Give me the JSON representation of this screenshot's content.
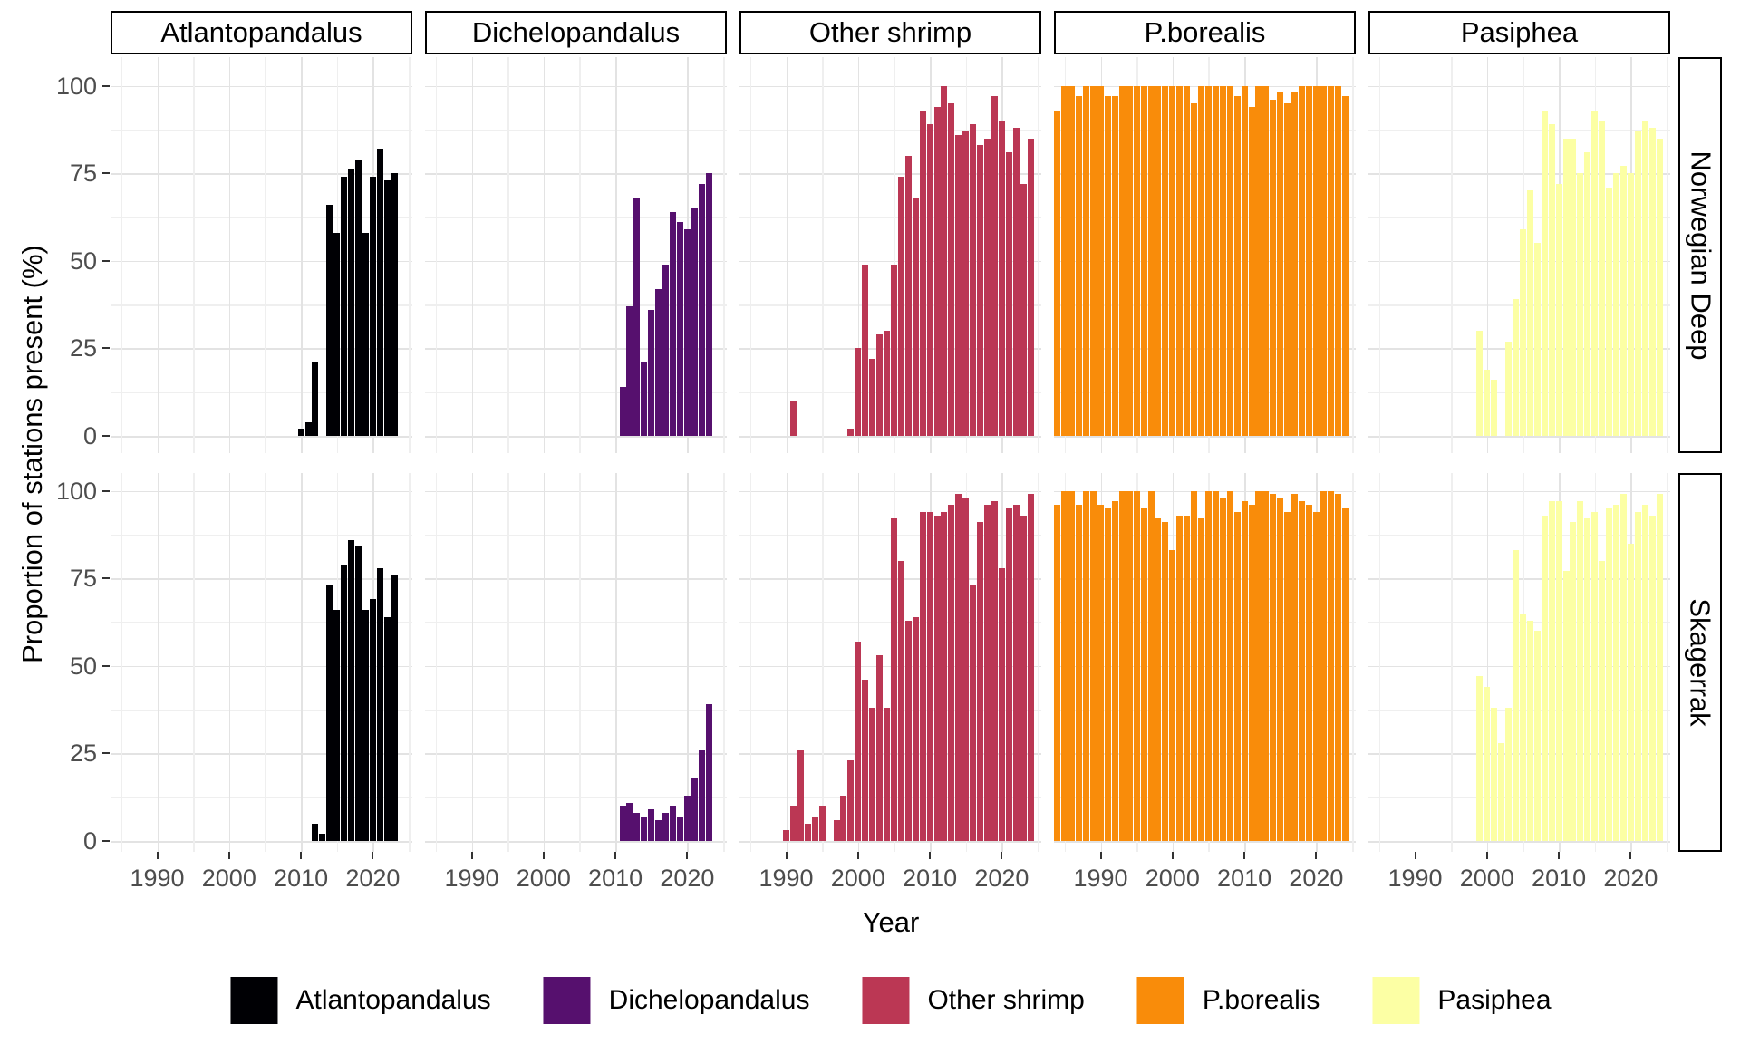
{
  "chart_data": {
    "type": "bar",
    "xlabel": "Year",
    "ylabel": "Proportion of stations present (%)",
    "x_domain": [
      1983.5,
      2025.5
    ],
    "x_ticks": [
      1990,
      2000,
      2010,
      2020
    ],
    "x_minor_ticks": [
      1985,
      1995,
      2005,
      2015,
      2025
    ],
    "y_ticks": [
      0,
      25,
      50,
      75,
      100
    ],
    "y_minor_ticks": [
      12.5,
      37.5,
      62.5,
      87.5
    ],
    "ylim": [
      0,
      100
    ],
    "grid": true,
    "legend_position": "bottom",
    "col_facets": [
      "Atlantopandalus",
      "Dichelopandalus",
      "Other shrimp",
      "P.borealis",
      "Pasiphea"
    ],
    "row_facets": [
      "Norwegian Deep",
      "Skagerrak"
    ],
    "legend": {
      "items": [
        {
          "label": "Atlantopandalus",
          "color": "#000004"
        },
        {
          "label": "Dichelopandalus",
          "color": "#56106E"
        },
        {
          "label": "Other shrimp",
          "color": "#BB3754"
        },
        {
          "label": "P.borealis",
          "color": "#F98C0A"
        },
        {
          "label": "Pasiphea",
          "color": "#FCFFA4"
        }
      ]
    },
    "panels": [
      {
        "row": "Norwegian Deep",
        "col": "Atlantopandalus",
        "color": "#000004",
        "years": [
          2010,
          2011,
          2012,
          2014,
          2015,
          2016,
          2017,
          2018,
          2019,
          2020,
          2021,
          2022,
          2023
        ],
        "values": [
          2,
          4,
          21,
          66,
          58,
          74,
          76,
          79,
          58,
          74,
          82,
          73,
          75
        ]
      },
      {
        "row": "Norwegian Deep",
        "col": "Dichelopandalus",
        "color": "#56106E",
        "years": [
          2011,
          2012,
          2013,
          2014,
          2015,
          2016,
          2017,
          2018,
          2019,
          2020,
          2021,
          2022,
          2023
        ],
        "values": [
          14,
          37,
          68,
          21,
          36,
          42,
          49,
          64,
          61,
          59,
          65,
          72,
          75
        ]
      },
      {
        "row": "Norwegian Deep",
        "col": "Other shrimp",
        "color": "#BB3754",
        "years": [
          1991,
          1999,
          2000,
          2001,
          2002,
          2003,
          2004,
          2005,
          2006,
          2007,
          2008,
          2009,
          2010,
          2011,
          2012,
          2013,
          2014,
          2015,
          2016,
          2017,
          2018,
          2019,
          2020,
          2021,
          2022,
          2023,
          2024
        ],
        "values": [
          10,
          2,
          25,
          49,
          22,
          29,
          30,
          49,
          74,
          80,
          68,
          93,
          89,
          94,
          100,
          95,
          86,
          87,
          89,
          83,
          85,
          97,
          90,
          81,
          88,
          72,
          85
        ]
      },
      {
        "row": "Norwegian Deep",
        "col": "P.borealis",
        "color": "#F98C0A",
        "years": [
          1984,
          1985,
          1986,
          1987,
          1988,
          1989,
          1990,
          1991,
          1992,
          1993,
          1994,
          1995,
          1996,
          1997,
          1998,
          1999,
          2000,
          2001,
          2002,
          2003,
          2004,
          2005,
          2006,
          2007,
          2008,
          2009,
          2010,
          2011,
          2012,
          2013,
          2014,
          2015,
          2016,
          2017,
          2018,
          2019,
          2020,
          2021,
          2022,
          2023,
          2024
        ],
        "values": [
          93,
          100,
          100,
          97,
          100,
          100,
          100,
          97,
          97,
          100,
          100,
          100,
          100,
          100,
          100,
          100,
          100,
          100,
          100,
          95,
          100,
          100,
          100,
          100,
          100,
          97,
          100,
          94,
          100,
          100,
          96,
          98,
          95,
          98,
          100,
          100,
          100,
          100,
          100,
          100,
          97
        ]
      },
      {
        "row": "Norwegian Deep",
        "col": "Pasiphea",
        "color": "#FCFFA4",
        "years": [
          1999,
          2000,
          2001,
          2003,
          2004,
          2005,
          2006,
          2007,
          2008,
          2009,
          2010,
          2011,
          2012,
          2013,
          2014,
          2015,
          2016,
          2017,
          2018,
          2019,
          2020,
          2021,
          2022,
          2023,
          2024
        ],
        "values": [
          30,
          19,
          16,
          27,
          39,
          59,
          70,
          55,
          93,
          89,
          72,
          85,
          85,
          75,
          81,
          93,
          90,
          71,
          75,
          77,
          75,
          87,
          90,
          88,
          85
        ]
      },
      {
        "row": "Skagerrak",
        "col": "Atlantopandalus",
        "color": "#000004",
        "years": [
          2012,
          2013,
          2014,
          2015,
          2016,
          2017,
          2018,
          2019,
          2020,
          2021,
          2022,
          2023
        ],
        "values": [
          5,
          2,
          73,
          66,
          79,
          86,
          84,
          66,
          69,
          78,
          64,
          76
        ]
      },
      {
        "row": "Skagerrak",
        "col": "Dichelopandalus",
        "color": "#56106E",
        "years": [
          2011,
          2012,
          2013,
          2014,
          2015,
          2016,
          2017,
          2018,
          2019,
          2020,
          2021,
          2022,
          2023
        ],
        "values": [
          10,
          11,
          8,
          7,
          9,
          6,
          8,
          10,
          7,
          13,
          18,
          26,
          39
        ]
      },
      {
        "row": "Skagerrak",
        "col": "Other shrimp",
        "color": "#BB3754",
        "years": [
          1990,
          1991,
          1992,
          1993,
          1994,
          1995,
          1997,
          1998,
          1999,
          2000,
          2001,
          2002,
          2003,
          2004,
          2005,
          2006,
          2007,
          2008,
          2009,
          2010,
          2011,
          2012,
          2013,
          2014,
          2015,
          2016,
          2017,
          2018,
          2019,
          2020,
          2021,
          2022,
          2023,
          2024
        ],
        "values": [
          3,
          10,
          26,
          5,
          7,
          10,
          6,
          13,
          23,
          57,
          46,
          38,
          53,
          38,
          92,
          80,
          63,
          64,
          94,
          94,
          93,
          94,
          96,
          99,
          98,
          73,
          91,
          96,
          97,
          78,
          95,
          96,
          93,
          99
        ]
      },
      {
        "row": "Skagerrak",
        "col": "P.borealis",
        "color": "#F98C0A",
        "years": [
          1984,
          1985,
          1986,
          1987,
          1988,
          1989,
          1990,
          1991,
          1992,
          1993,
          1994,
          1995,
          1996,
          1997,
          1998,
          1999,
          2000,
          2001,
          2002,
          2003,
          2004,
          2005,
          2006,
          2007,
          2008,
          2009,
          2010,
          2011,
          2012,
          2013,
          2014,
          2015,
          2016,
          2017,
          2018,
          2019,
          2020,
          2021,
          2022,
          2023,
          2024
        ],
        "values": [
          96,
          100,
          100,
          96,
          100,
          100,
          96,
          95,
          97,
          100,
          100,
          100,
          95,
          100,
          92,
          91,
          83,
          93,
          93,
          100,
          92,
          100,
          100,
          98,
          100,
          94,
          97,
          96,
          100,
          100,
          99,
          98,
          94,
          99,
          97,
          96,
          94,
          100,
          100,
          99,
          95
        ]
      },
      {
        "row": "Skagerrak",
        "col": "Pasiphea",
        "color": "#FCFFA4",
        "years": [
          1999,
          2000,
          2001,
          2002,
          2003,
          2004,
          2005,
          2006,
          2007,
          2008,
          2009,
          2010,
          2011,
          2012,
          2013,
          2014,
          2015,
          2016,
          2017,
          2018,
          2019,
          2020,
          2021,
          2022,
          2023,
          2024
        ],
        "values": [
          47,
          44,
          38,
          28,
          38,
          83,
          65,
          63,
          60,
          93,
          97,
          97,
          77,
          91,
          97,
          92,
          94,
          80,
          95,
          96,
          99,
          85,
          94,
          96,
          93,
          99
        ]
      }
    ]
  }
}
